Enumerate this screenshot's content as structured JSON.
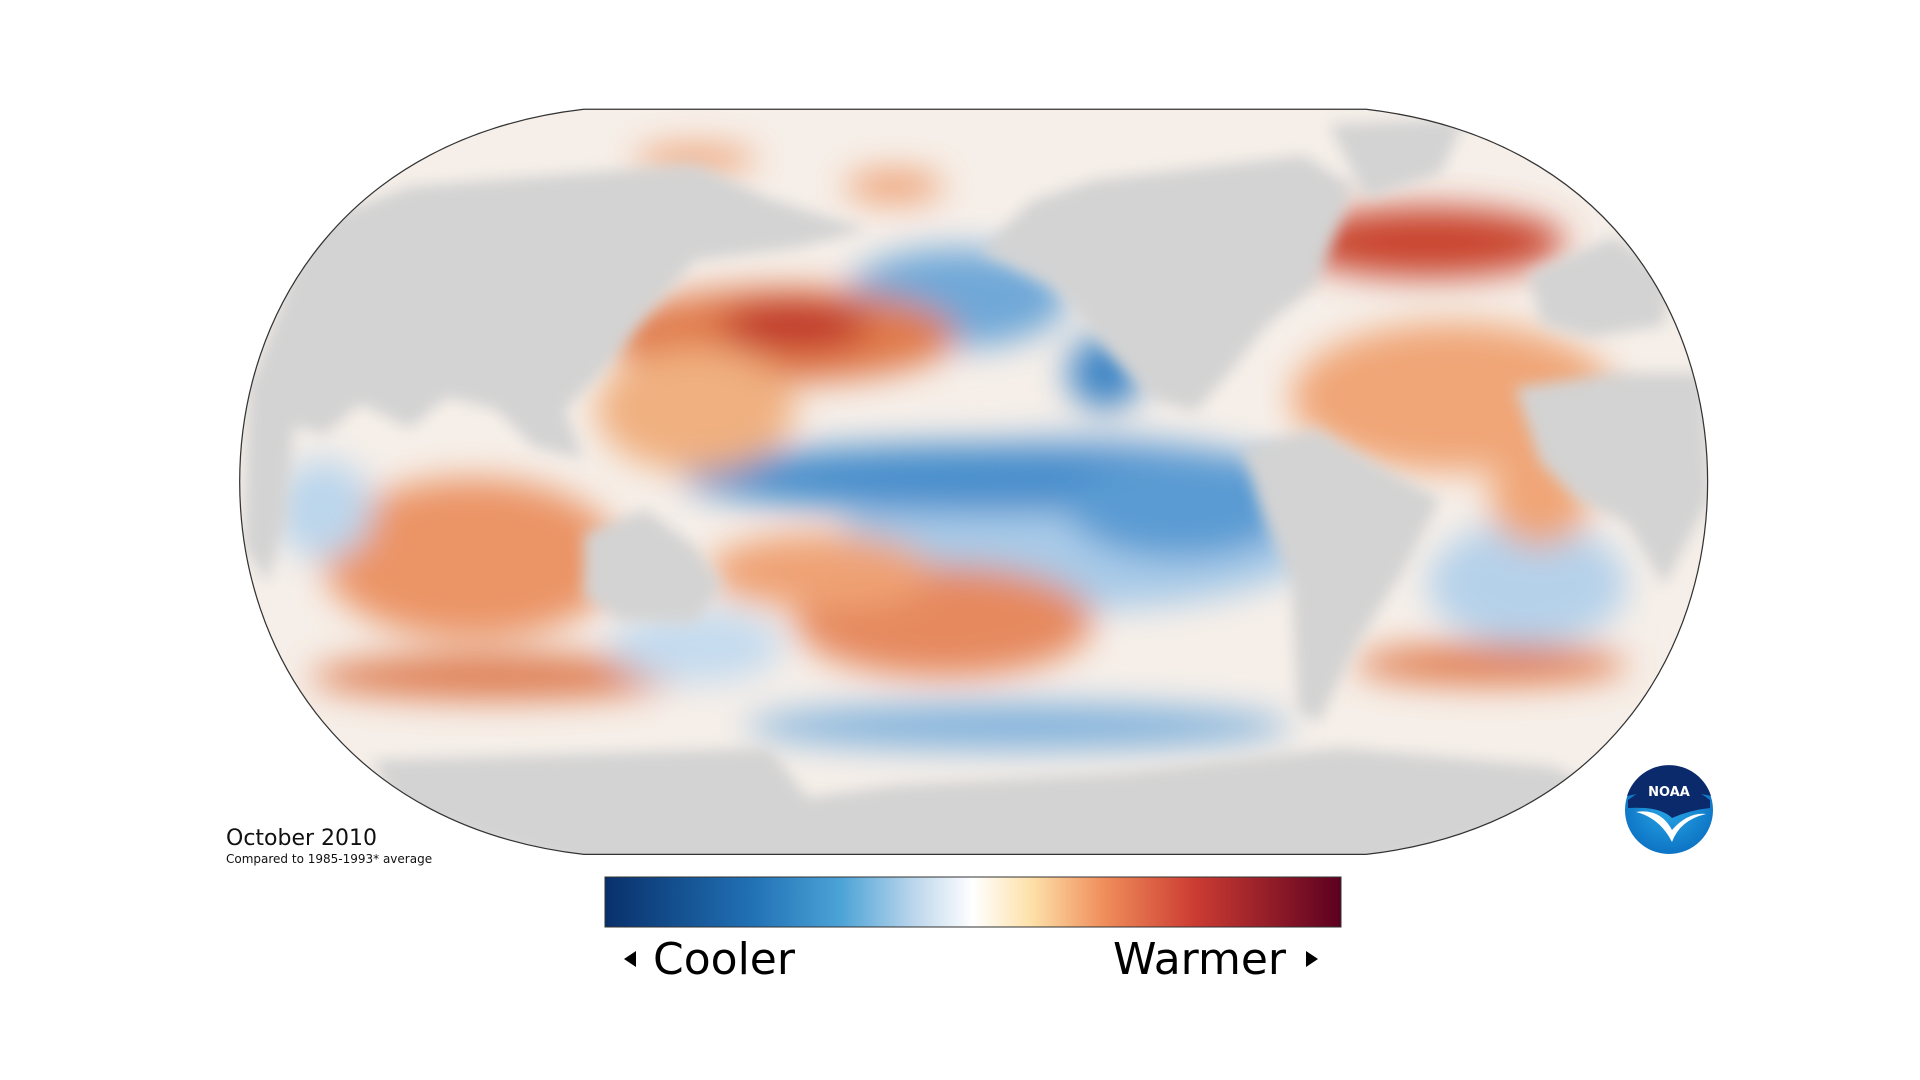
{
  "title": "October 2010",
  "subtitle": "Compared to 1985-1993* average",
  "legend": {
    "low_label": "Cooler",
    "high_label": "Warmer"
  },
  "logo": {
    "text": "NOAA"
  }
}
